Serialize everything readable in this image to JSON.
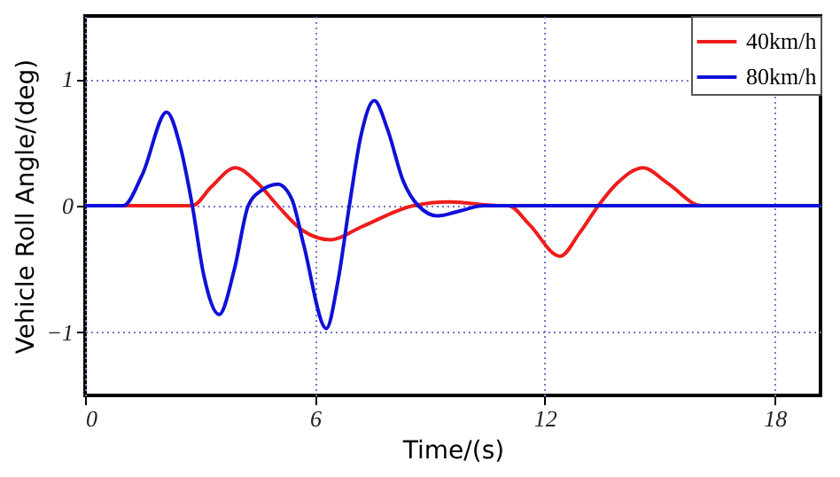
{
  "chart_data": {
    "type": "line",
    "xlabel": "Time/(s)",
    "ylabel": "Vehicle Roll Angle/(deg)",
    "xlim": [
      0,
      19.2
    ],
    "xticks": [
      0,
      6,
      12,
      18
    ],
    "ylim": [
      -1.5,
      1.5
    ],
    "yticks": [
      -1,
      0,
      1
    ],
    "grid": true,
    "legend": "top right",
    "line_style": "solid",
    "series": [
      {
        "name": "40km/h",
        "color": "#ee1c1c",
        "x": [
          0,
          2.8,
          3.3,
          3.92,
          4.5,
          5.03,
          5.7,
          6.42,
          7.2,
          8.57,
          9.5,
          10.8,
          11.05,
          11.6,
          12.4,
          12.9,
          13.4,
          13.9,
          14.57,
          15.2,
          16.1,
          19.2
        ],
        "values": [
          0,
          0,
          0.15,
          0.3,
          0.18,
          0,
          -0.2,
          -0.27,
          -0.17,
          0,
          0.03,
          0,
          0,
          -0.15,
          -0.4,
          -0.22,
          0,
          0.18,
          0.3,
          0.18,
          0,
          0
        ]
      },
      {
        "name": "80km/h",
        "color": "#1010d8",
        "x": [
          0,
          1.0,
          1.5,
          2.13,
          2.5,
          2.8,
          3.1,
          3.5,
          3.9,
          4.26,
          4.6,
          5.03,
          5.4,
          5.7,
          6.3,
          6.6,
          6.9,
          7.2,
          7.55,
          7.9,
          8.3,
          8.7,
          9.2,
          9.8,
          10.4,
          19.2
        ],
        "values": [
          0,
          0,
          0.25,
          0.74,
          0.45,
          0,
          -0.55,
          -0.86,
          -0.5,
          0,
          0.12,
          0.17,
          0.05,
          -0.3,
          -0.97,
          -0.6,
          0,
          0.55,
          0.83,
          0.6,
          0.2,
          0,
          -0.08,
          -0.04,
          0,
          0
        ]
      }
    ]
  }
}
